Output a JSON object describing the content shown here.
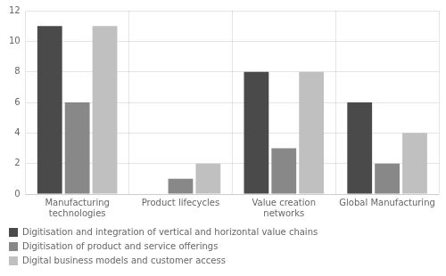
{
  "chart_data": {
    "type": "bar",
    "categories": [
      "Manufacturing\ntechnologies",
      "Product lifecycles",
      "Value creation\nnetworks",
      "Global Manufacturing"
    ],
    "series": [
      {
        "name": "Digitisation and integration of vertical and horizontal value chains",
        "color": "#4a4a4a",
        "values": [
          11,
          0,
          8,
          6
        ]
      },
      {
        "name": "Digitisation of product and service offerings",
        "color": "#888888",
        "values": [
          6,
          1,
          3,
          2
        ]
      },
      {
        "name": "Digital business models and customer access",
        "color": "#c0c0c0",
        "values": [
          11,
          2,
          8,
          4
        ]
      }
    ],
    "ylim": [
      0,
      12
    ],
    "yticks": [
      0,
      2,
      4,
      6,
      8,
      10,
      12
    ],
    "grid": true,
    "legend": "bottom"
  }
}
